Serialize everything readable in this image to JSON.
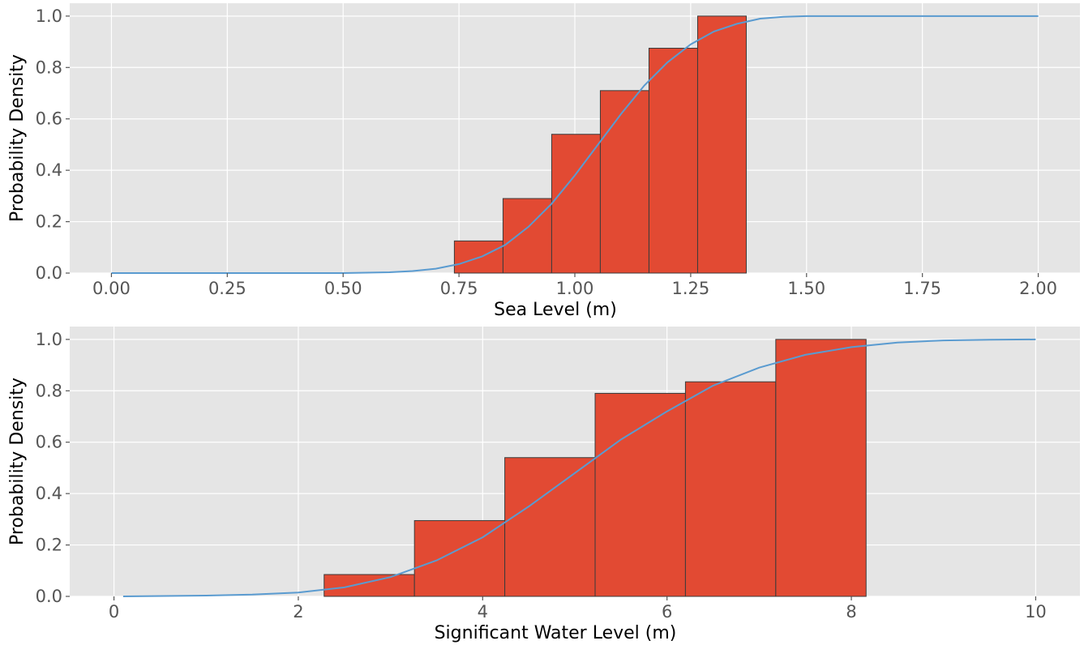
{
  "chart_data": [
    {
      "type": "bar",
      "title": "",
      "xlabel": "Sea Level (m)",
      "ylabel": "Probability Density",
      "xlim": [
        -0.09,
        2.09
      ],
      "ylim": [
        0,
        1.05
      ],
      "xticks": [
        0,
        0.25,
        0.5,
        0.75,
        1.0,
        1.25,
        1.5,
        1.75,
        2.0
      ],
      "xtick_labels": [
        "0.00",
        "0.25",
        "0.50",
        "0.75",
        "1.00",
        "1.25",
        "1.50",
        "1.75",
        "2.00"
      ],
      "yticks": [
        0,
        0.2,
        0.4,
        0.6,
        0.8,
        1.0
      ],
      "ytick_labels": [
        "0.0",
        "0.2",
        "0.4",
        "0.6",
        "0.8",
        "1.0"
      ],
      "grid": true,
      "colors": {
        "bars": "#e24a33",
        "line": "#5a9bd0",
        "background": "#e5e5e5"
      },
      "bins": [
        {
          "x0": 0.74,
          "x1": 0.845,
          "value": 0.125
        },
        {
          "x0": 0.845,
          "x1": 0.95,
          "value": 0.29
        },
        {
          "x0": 0.95,
          "x1": 1.055,
          "value": 0.54
        },
        {
          "x0": 1.055,
          "x1": 1.16,
          "value": 0.71
        },
        {
          "x0": 1.16,
          "x1": 1.265,
          "value": 0.875
        },
        {
          "x0": 1.265,
          "x1": 1.37,
          "value": 1.0
        }
      ],
      "line": {
        "x": [
          0.0,
          0.5,
          0.6,
          0.65,
          0.7,
          0.75,
          0.8,
          0.85,
          0.9,
          0.95,
          1.0,
          1.05,
          1.1,
          1.15,
          1.2,
          1.25,
          1.3,
          1.35,
          1.4,
          1.45,
          1.5,
          1.6,
          2.0
        ],
        "y": [
          0.0,
          0.0,
          0.003,
          0.008,
          0.017,
          0.035,
          0.065,
          0.11,
          0.18,
          0.27,
          0.38,
          0.5,
          0.62,
          0.73,
          0.82,
          0.89,
          0.94,
          0.97,
          0.99,
          0.997,
          1.0,
          1.0,
          1.0
        ]
      }
    },
    {
      "type": "bar",
      "title": "",
      "xlabel": "Significant Water Level (m)",
      "ylabel": "Probability Density",
      "xlim": [
        -0.48,
        10.48
      ],
      "ylim": [
        0,
        1.05
      ],
      "xticks": [
        0,
        2,
        4,
        6,
        8,
        10
      ],
      "xtick_labels": [
        "0",
        "2",
        "4",
        "6",
        "8",
        "10"
      ],
      "yticks": [
        0,
        0.2,
        0.4,
        0.6,
        0.8,
        1.0
      ],
      "ytick_labels": [
        "0.0",
        "0.2",
        "0.4",
        "0.6",
        "0.8",
        "1.0"
      ],
      "grid": true,
      "colors": {
        "bars": "#e24a33",
        "line": "#5a9bd0",
        "background": "#e5e5e5"
      },
      "bins": [
        {
          "x0": 2.28,
          "x1": 3.26,
          "value": 0.085
        },
        {
          "x0": 3.26,
          "x1": 4.24,
          "value": 0.295
        },
        {
          "x0": 4.24,
          "x1": 5.22,
          "value": 0.54
        },
        {
          "x0": 5.22,
          "x1": 6.2,
          "value": 0.79
        },
        {
          "x0": 6.2,
          "x1": 7.18,
          "value": 0.835
        },
        {
          "x0": 7.18,
          "x1": 8.16,
          "value": 1.0
        }
      ],
      "line": {
        "x": [
          0.1,
          1.0,
          1.5,
          2.0,
          2.5,
          3.0,
          3.5,
          4.0,
          4.5,
          5.0,
          5.5,
          6.0,
          6.5,
          7.0,
          7.5,
          8.0,
          8.5,
          9.0,
          9.5,
          10.0
        ],
        "y": [
          0.0,
          0.003,
          0.007,
          0.015,
          0.035,
          0.075,
          0.14,
          0.23,
          0.35,
          0.48,
          0.61,
          0.72,
          0.82,
          0.89,
          0.94,
          0.97,
          0.988,
          0.996,
          0.999,
          1.0
        ]
      }
    }
  ]
}
